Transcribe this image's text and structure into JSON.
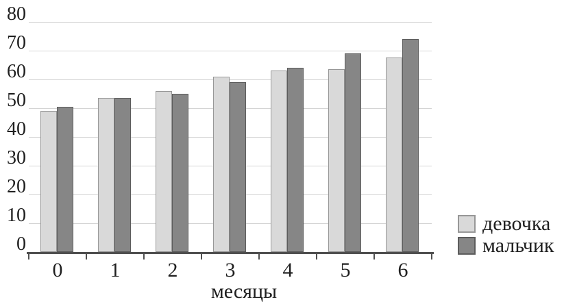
{
  "chart_data": {
    "type": "bar",
    "title": "",
    "xlabel": "месяцы",
    "ylabel": "",
    "categories": [
      "0",
      "1",
      "2",
      "3",
      "4",
      "5",
      "6"
    ],
    "series": [
      {
        "name": "девочка",
        "values": [
          49,
          53.5,
          56,
          61,
          63,
          63.5,
          67.5
        ],
        "fill": "#d9d9d9",
        "border": "#979797"
      },
      {
        "name": "мальчик",
        "values": [
          50.5,
          53.5,
          55,
          59,
          64,
          69,
          74
        ],
        "fill": "#868686",
        "border": "#5c5c5c"
      }
    ],
    "ylim": [
      0,
      80
    ],
    "ytick_step": 10,
    "yticks": [
      "0",
      "10",
      "20",
      "30",
      "40",
      "50",
      "60",
      "70",
      "80"
    ],
    "grid": true,
    "legend_position": "bottom-right"
  },
  "colors": {
    "background": "#ffffff",
    "gridline": "#d4d4d4",
    "axis": "#4f4f4f",
    "text": "#1f1f1f"
  }
}
